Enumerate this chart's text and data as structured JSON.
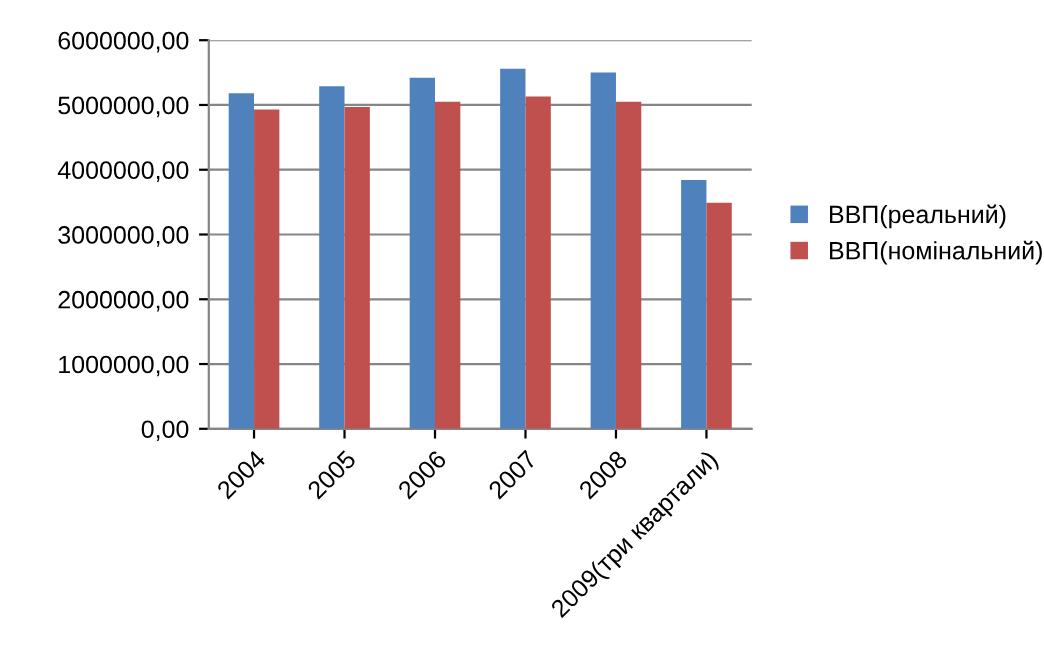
{
  "chart_data": {
    "type": "bar",
    "categories": [
      "2004",
      "2005",
      "2006",
      "2007",
      "2008",
      "2009(три квартали)"
    ],
    "series": [
      {
        "name": "ВВП(реальний)",
        "color": "#4f81bd",
        "values": [
          5180000,
          5290000,
          5420000,
          5560000,
          5500000,
          3840000
        ]
      },
      {
        "name": "ВВП(номінальний)",
        "color": "#c0504d",
        "values": [
          4930000,
          4970000,
          5050000,
          5130000,
          5050000,
          3490000
        ]
      }
    ],
    "ylim": [
      0,
      6000000
    ],
    "yticks": [
      {
        "value": 0,
        "label": "0,00"
      },
      {
        "value": 1000000,
        "label": "1000000,00"
      },
      {
        "value": 2000000,
        "label": "2000000,00"
      },
      {
        "value": 3000000,
        "label": "3000000,00"
      },
      {
        "value": 4000000,
        "label": "4000000,00"
      },
      {
        "value": 5000000,
        "label": "5000000,00"
      },
      {
        "value": 6000000,
        "label": "6000000,00"
      }
    ],
    "grid": "y",
    "legend": "right"
  }
}
